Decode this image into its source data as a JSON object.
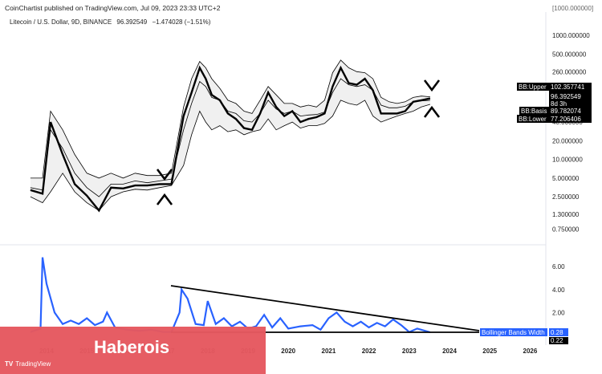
{
  "header": {
    "publisher": "CoinChartist published on TradingView.com, Jul 09, 2023 23:33 UTC+2"
  },
  "legend": {
    "title": "Litecoin / U.S. Dollar, 9D, BINANCE",
    "price": "96.392549",
    "change": "−1.474028 (−1.51%)"
  },
  "top_clip_label": "[1000.000000]",
  "chart_data": [
    {
      "type": "line",
      "scale": "log",
      "x": [
        2013.6,
        2013.9,
        2014.1,
        2014.4,
        2014.7,
        2015.0,
        2015.3,
        2015.6,
        2015.9,
        2016.2,
        2016.5,
        2016.8,
        2017.1,
        2017.4,
        2017.6,
        2017.8,
        2017.95,
        2018.1,
        2018.3,
        2018.5,
        2018.7,
        2018.9,
        2019.1,
        2019.3,
        2019.5,
        2019.7,
        2019.9,
        2020.1,
        2020.3,
        2020.5,
        2020.7,
        2020.9,
        2021.1,
        2021.3,
        2021.5,
        2021.7,
        2021.9,
        2022.1,
        2022.3,
        2022.5,
        2022.7,
        2022.9,
        2023.1,
        2023.3,
        2023.52
      ],
      "series": [
        {
          "name": "Litecoin / U.S. Dollar",
          "values": [
            3.2,
            2.8,
            40,
            12,
            4,
            2.6,
            1.5,
            3.5,
            3.4,
            3.8,
            3.8,
            4.0,
            4.0,
            50,
            120,
            300,
            200,
            110,
            90,
            55,
            45,
            32,
            30,
            55,
            120,
            70,
            50,
            60,
            40,
            45,
            48,
            55,
            150,
            300,
            170,
            160,
            200,
            130,
            55,
            55,
            55,
            60,
            85,
            90,
            96.39
          ]
        },
        {
          "name": "BB:Upper",
          "values": [
            5,
            5,
            60,
            30,
            12,
            6,
            5,
            6,
            5,
            6,
            5.5,
            5.5,
            6,
            70,
            200,
            380,
            300,
            200,
            140,
            90,
            80,
            60,
            55,
            90,
            150,
            110,
            80,
            80,
            70,
            75,
            70,
            90,
            250,
            400,
            300,
            260,
            250,
            200,
            100,
            85,
            80,
            85,
            100,
            105,
            102.36
          ]
        },
        {
          "name": "BB:Basis",
          "values": [
            3.5,
            3.2,
            30,
            15,
            6,
            3.5,
            2.5,
            4,
            4,
            4.5,
            4.2,
            4.5,
            4.8,
            30,
            80,
            180,
            150,
            100,
            90,
            60,
            55,
            42,
            40,
            55,
            90,
            65,
            55,
            60,
            50,
            52,
            53,
            58,
            120,
            200,
            160,
            150,
            160,
            130,
            75,
            68,
            68,
            72,
            85,
            88,
            89.78
          ]
        },
        {
          "name": "BB:Lower",
          "values": [
            2.5,
            2,
            3,
            6,
            3,
            2,
            1.5,
            2.5,
            3,
            3.3,
            3.2,
            3.5,
            3.8,
            8,
            25,
            60,
            40,
            30,
            35,
            28,
            30,
            25,
            28,
            30,
            45,
            30,
            35,
            40,
            32,
            35,
            35,
            38,
            50,
            90,
            80,
            75,
            90,
            50,
            40,
            45,
            50,
            55,
            60,
            70,
            77.21
          ]
        }
      ],
      "yaxis_ticks": [
        "1000.000000",
        "500.000000",
        "260.000000",
        "130.000000",
        "65.000000",
        "40.000000",
        "20.000000",
        "10.000000",
        "5.000000",
        "2.500000",
        "1.300000",
        "0.750000"
      ],
      "ylim": [
        0.6,
        1200
      ],
      "labels": [
        {
          "name": "BB:Upper",
          "value": "102.357741",
          "color": "#000000"
        },
        {
          "name": "price",
          "value": "96.392549",
          "sub": "8d 3h",
          "color": "#000000"
        },
        {
          "name": "BB:Basis",
          "value": "89.782074",
          "color": "#000000"
        },
        {
          "name": "BB:Lower",
          "value": "77.206406",
          "color": "#000000"
        }
      ]
    },
    {
      "type": "line",
      "series": [
        {
          "name": "Bollinger Bands Width",
          "x": [
            2013.6,
            2013.85,
            2013.9,
            2014.0,
            2014.2,
            2014.4,
            2014.6,
            2014.8,
            2015.0,
            2015.2,
            2015.4,
            2015.5,
            2015.7,
            2016.0,
            2016.3,
            2016.6,
            2016.9,
            2017.1,
            2017.3,
            2017.35,
            2017.5,
            2017.7,
            2017.9,
            2018.0,
            2018.2,
            2018.4,
            2018.6,
            2018.8,
            2019.0,
            2019.2,
            2019.4,
            2019.6,
            2019.8,
            2020.0,
            2020.3,
            2020.6,
            2020.8,
            2021.0,
            2021.2,
            2021.4,
            2021.6,
            2021.8,
            2022.0,
            2022.2,
            2022.4,
            2022.6,
            2022.8,
            2023.0,
            2023.2,
            2023.52
          ],
          "values": [
            0.3,
            0.6,
            6.8,
            4.5,
            2.0,
            1.0,
            1.3,
            1.0,
            1.5,
            0.9,
            1.2,
            2.0,
            0.7,
            0.5,
            0.4,
            0.5,
            0.3,
            0.3,
            2.0,
            4.0,
            3.2,
            1.0,
            0.9,
            3.0,
            1.0,
            1.5,
            0.8,
            1.2,
            0.6,
            0.8,
            1.8,
            0.7,
            1.5,
            0.6,
            0.8,
            0.9,
            0.5,
            1.5,
            2.0,
            1.2,
            0.8,
            1.2,
            0.7,
            1.1,
            0.8,
            1.4,
            0.9,
            0.3,
            0.6,
            0.28
          ]
        }
      ],
      "yaxis_ticks": [
        "6.00",
        "4.00",
        "2.00"
      ],
      "ylim": [
        0,
        7.2
      ],
      "labels": [
        {
          "name": "Bollinger Bands Width",
          "value": "0.28",
          "color": "#2962ff"
        },
        {
          "name": "lower",
          "value": "0.22",
          "color": "#000000"
        }
      ]
    }
  ],
  "xaxis_ticks": [
    "2014",
    "2015",
    "2016",
    "2017",
    "2018",
    "2019",
    "2020",
    "2021",
    "2022",
    "2023",
    "2024",
    "2025",
    "2026"
  ],
  "banner": {
    "text": "Haberois",
    "color": "#e5585f"
  },
  "footer": {
    "logo": "TradingView"
  }
}
